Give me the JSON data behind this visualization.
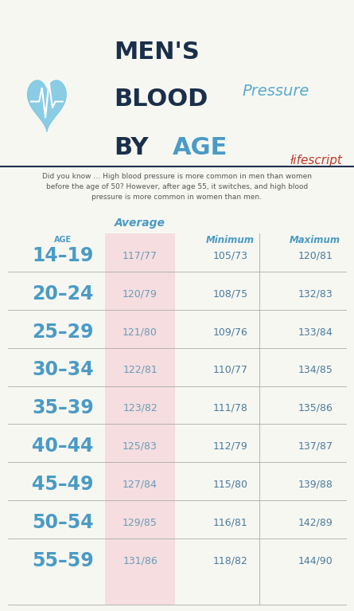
{
  "bg_color": "#f7f7f2",
  "title_dark_color": "#1a2f4a",
  "title_blue_color": "#4a9bc5",
  "title_script_color": "#5aabcc",
  "lifescript_color": "#c0392b",
  "heart_color": "#7ec8e3",
  "subtitle_text": "Did you know … High blood pressure is more common in men than women\nbefore the age of 50? However, after age 55, it switches, and high blood\npressure is more common in women than men.",
  "subtitle_color": "#555555",
  "col_header_average": "Average",
  "col_header_minimum": "Minimum",
  "col_header_maximum": "Maximum",
  "col_header_color": "#4a9bc5",
  "avg_col_bg": "#f5dde0",
  "divider_line_color": "#aaaaaa",
  "vert_divider_color": "#bbbbbb",
  "age_col_color": "#4a9bc5",
  "avg_val_color": "#6a9db5",
  "min_val_color": "#4a7a9b",
  "max_val_color": "#4a7a9b",
  "rows": [
    {
      "age": "14–19",
      "avg": "117/77",
      "min": "105/73",
      "max": "120/81"
    },
    {
      "age": "20–24",
      "avg": "120/79",
      "min": "108/75",
      "max": "132/83"
    },
    {
      "age": "25–29",
      "avg": "121/80",
      "min": "109/76",
      "max": "133/84"
    },
    {
      "age": "30–34",
      "avg": "122/81",
      "min": "110/77",
      "max": "134/85"
    },
    {
      "age": "35–39",
      "avg": "123/82",
      "min": "111/78",
      "max": "135/86"
    },
    {
      "age": "40–44",
      "avg": "125/83",
      "min": "112/79",
      "max": "137/87"
    },
    {
      "age": "45–49",
      "avg": "127/84",
      "min": "115/80",
      "max": "139/88"
    },
    {
      "age": "50–54",
      "avg": "129/85",
      "min": "116/81",
      "max": "142/89"
    },
    {
      "age": "55–59",
      "avg": "131/86",
      "min": "118/82",
      "max": "144/90"
    }
  ]
}
